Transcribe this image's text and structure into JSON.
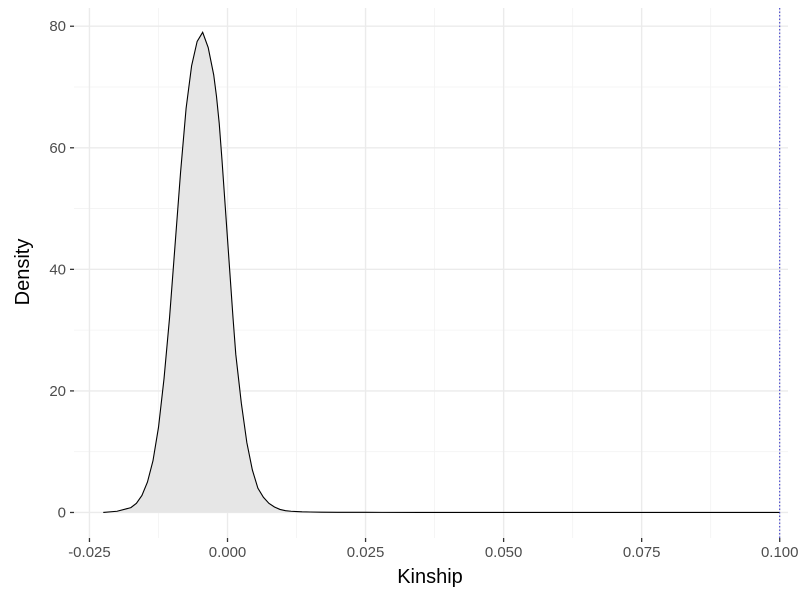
{
  "chart_data": {
    "type": "area",
    "xlabel": "Kinship",
    "ylabel": "Density",
    "xlim": [
      -0.0278,
      0.1015
    ],
    "ylim": [
      -4.2,
      83.0
    ],
    "x_ticks": [
      -0.025,
      0.0,
      0.025,
      0.05,
      0.075,
      0.1
    ],
    "x_tick_labels": [
      "-0.025",
      "0.000",
      "0.025",
      "0.050",
      "0.075",
      "0.100"
    ],
    "y_ticks": [
      0,
      20,
      40,
      60,
      80
    ],
    "y_tick_labels": [
      "0",
      "20",
      "40",
      "60",
      "80"
    ],
    "grid": true,
    "series": [
      {
        "x": [
          -0.0225,
          -0.02,
          -0.0175,
          -0.0165,
          -0.0155,
          -0.0145,
          -0.0135,
          -0.0125,
          -0.0115,
          -0.0105,
          -0.0095,
          -0.0085,
          -0.0075,
          -0.0065,
          -0.0055,
          -0.0045,
          -0.0035,
          -0.0025,
          -0.002,
          -0.0015,
          -0.001,
          -0.0005,
          0.0,
          0.0005,
          0.001,
          0.0015,
          0.0025,
          0.0035,
          0.0045,
          0.0055,
          0.0065,
          0.0075,
          0.0085,
          0.0095,
          0.0105,
          0.0115,
          0.0125,
          0.0135,
          0.015,
          0.017,
          0.02,
          0.025,
          0.035,
          0.05,
          0.07,
          0.09,
          0.1
        ],
        "y": [
          0.0,
          0.2,
          0.8,
          1.5,
          2.8,
          5.0,
          8.5,
          14.0,
          22.0,
          32.0,
          44.0,
          56.0,
          66.5,
          73.5,
          77.5,
          79.0,
          76.5,
          72.0,
          68.5,
          64.0,
          58.0,
          51.5,
          45.0,
          38.5,
          32.0,
          26.0,
          18.0,
          11.5,
          7.0,
          4.0,
          2.5,
          1.5,
          0.9,
          0.5,
          0.3,
          0.2,
          0.15,
          0.1,
          0.08,
          0.05,
          0.03,
          0.02,
          0.0,
          0.0,
          0.0,
          0.0,
          0.0
        ]
      }
    ],
    "fill_color": "#e6e6e6",
    "line_color": "#000000",
    "vline": {
      "x": 0.1,
      "color": "#3333cc",
      "style": "dotted"
    }
  }
}
